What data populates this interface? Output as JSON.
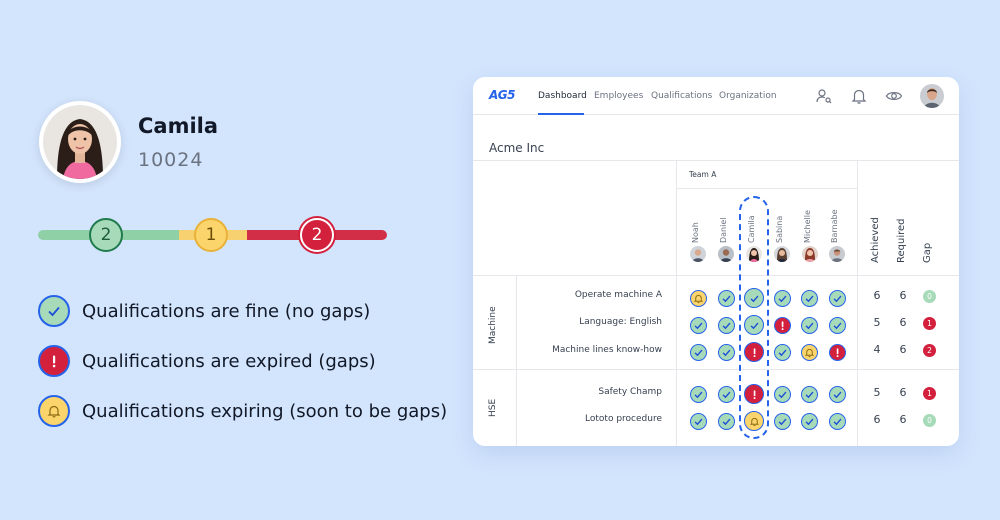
{
  "profile": {
    "name": "Camila",
    "id": "10024"
  },
  "summary": {
    "fine": "2",
    "expiring": "1",
    "expired": "2"
  },
  "colors": {
    "fine": "#a6dab8",
    "expiring": "#fbd46b",
    "expired": "#d3213d",
    "accent": "#2563eb"
  },
  "legend": [
    {
      "status": "fine",
      "icon": "check-icon",
      "label": "Qualifications are fine (no gaps)"
    },
    {
      "status": "expired",
      "icon": "exclamation-icon",
      "label": "Qualifications are expired (gaps)"
    },
    {
      "status": "expiring",
      "icon": "bell-icon",
      "label": "Qualifications expiring (soon to be gaps)"
    }
  ],
  "app": {
    "logo": "AG5",
    "nav": [
      "Dashboard",
      "Employees",
      "Qualifications",
      "Organization"
    ],
    "active_tab": "Dashboard",
    "company": "Acme Inc",
    "team": "Team A",
    "employees": [
      "Noah",
      "Daniel",
      "Camila",
      "Sabina",
      "Michelle",
      "Barnabe"
    ],
    "highlighted_employee": "Camila",
    "stat_headers": [
      "Achieved",
      "Required",
      "Gap"
    ],
    "groups": [
      {
        "name": "Machine",
        "rows": [
          {
            "label": "Operate machine A",
            "cells": [
              "so",
              "ok",
              "ok",
              "ok",
              "ok",
              "ok"
            ],
            "achieved": "6",
            "required": "6",
            "gap": "0"
          },
          {
            "label": "Language: English",
            "cells": [
              "ok",
              "ok",
              "ok",
              "ex",
              "ok",
              "ok"
            ],
            "achieved": "5",
            "required": "6",
            "gap": "1"
          },
          {
            "label": "Machine lines know-how",
            "cells": [
              "ok",
              "ok",
              "ex",
              "ok",
              "so",
              "ex"
            ],
            "achieved": "4",
            "required": "6",
            "gap": "2"
          }
        ]
      },
      {
        "name": "HSE",
        "rows": [
          {
            "label": "Safety Champ",
            "cells": [
              "ok",
              "ok",
              "ex",
              "ok",
              "ok",
              "ok"
            ],
            "achieved": "5",
            "required": "6",
            "gap": "1"
          },
          {
            "label": "Lototo procedure",
            "cells": [
              "ok",
              "ok",
              "so",
              "ok",
              "ok",
              "ok"
            ],
            "achieved": "6",
            "required": "6",
            "gap": "0"
          }
        ]
      }
    ]
  }
}
